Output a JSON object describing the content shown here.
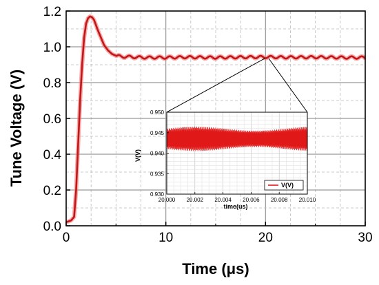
{
  "chart_data": [
    {
      "type": "line",
      "xlabel": "Time (μs)",
      "ylabel": "Tune Voltage (V)",
      "xlim": [
        0,
        30
      ],
      "ylim": [
        0.0,
        1.2
      ],
      "xticks": [
        "0",
        "10",
        "20",
        "30"
      ],
      "yticks": [
        "0.0",
        "0.2",
        "0.4",
        "0.6",
        "0.8",
        "1.0",
        "1.2"
      ],
      "grid": true,
      "color": "#c01818",
      "series": [
        {
          "x": [
            0,
            0.5,
            0.8,
            1.0,
            1.2,
            1.4,
            1.6,
            1.8,
            2.0,
            2.2,
            2.4,
            2.6,
            2.8,
            3.0,
            3.2,
            3.5,
            3.8,
            4.2,
            4.6,
            5.0,
            5.5,
            6.0,
            7.0,
            8.0,
            10.0,
            12.0,
            15.0,
            18.0,
            20.0,
            22.0,
            25.0,
            28.0,
            30.0
          ],
          "y": [
            0.02,
            0.03,
            0.05,
            0.2,
            0.45,
            0.7,
            0.9,
            1.05,
            1.13,
            1.16,
            1.17,
            1.165,
            1.15,
            1.12,
            1.09,
            1.05,
            1.01,
            0.98,
            0.96,
            0.95,
            0.945,
            0.945,
            0.942,
            0.94,
            0.94,
            0.942,
            0.94,
            0.942,
            0.943,
            0.941,
            0.942,
            0.94,
            0.94
          ]
        }
      ]
    },
    {
      "type": "line",
      "xlabel": "time(us)",
      "ylabel": "V(V)",
      "xlim": [
        20.0,
        20.01
      ],
      "ylim": [
        0.93,
        0.95
      ],
      "xticks": [
        "20.000",
        "20.002",
        "20.004",
        "20.006",
        "20.008",
        "20.010"
      ],
      "yticks": [
        "0.930",
        "0.935",
        "0.940",
        "0.945",
        "0.950"
      ],
      "grid": true,
      "legend": "bottom-right",
      "color": "#e01818",
      "series": [
        {
          "name": "V(V)",
          "center": 0.9435,
          "amplitude_min": 0.002,
          "amplitude_max": 0.003
        }
      ]
    }
  ]
}
